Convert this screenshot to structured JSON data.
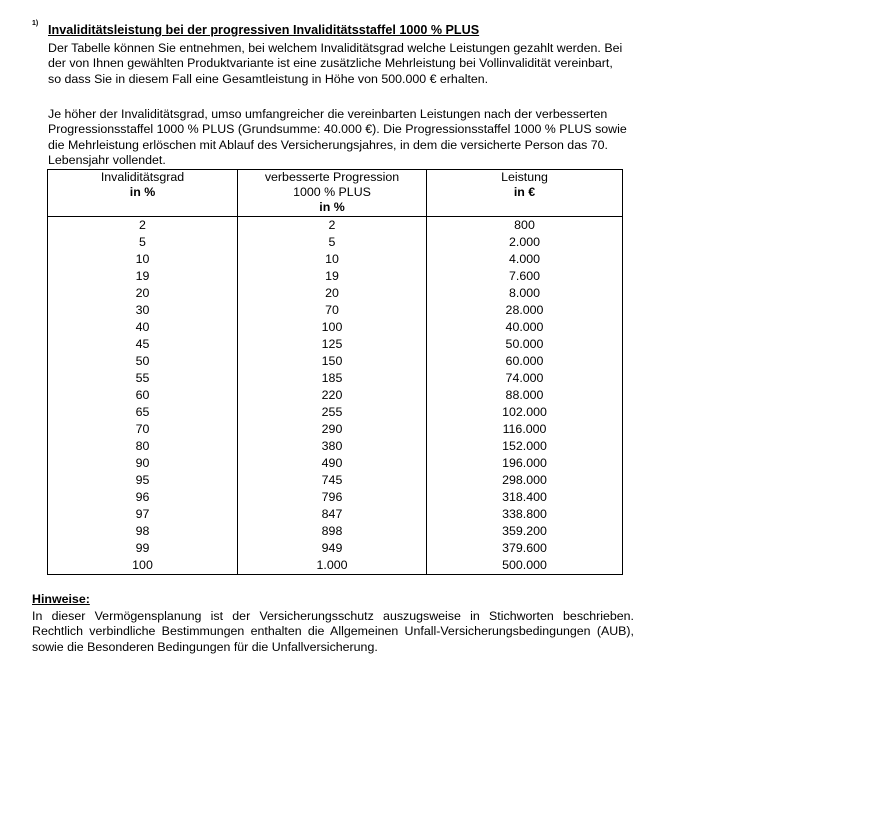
{
  "footnote_marker": "1)",
  "title": "Invaliditätsleistung bei der progressiven Invaliditätsstaffel 1000 % PLUS",
  "paragraph1": "Der Tabelle können Sie entnehmen, bei welchem Invaliditätsgrad welche Leistungen gezahlt werden. Bei der von Ihnen gewählten Produktvariante ist eine zusätzliche Mehrleistung bei Vollinvalidität vereinbart, so dass Sie in diesem Fall eine Gesamtleistung in Höhe von 500.000 € erhalten.",
  "paragraph2": "Je höher der Invaliditätsgrad, umso umfangreicher die vereinbarten Leistungen nach der verbesserten Progressionsstaffel 1000 % PLUS (Grundsumme: 40.000 €). Die Progressionsstaffel 1000 % PLUS sowie die Mehrleistung erlöschen mit Ablauf des Versicherungsjahres, in dem die versicherte Person das 70. Lebensjahr vollendet.",
  "table": {
    "headers": [
      {
        "line1": "Invaliditätsgrad",
        "line2": "",
        "unit": "in %"
      },
      {
        "line1": "verbesserte Progression",
        "line2": "1000 % PLUS",
        "unit": "in %"
      },
      {
        "line1": "Leistung",
        "line2": "",
        "unit": "in €"
      }
    ],
    "rows": [
      [
        "2",
        "2",
        "800"
      ],
      [
        "5",
        "5",
        "2.000"
      ],
      [
        "10",
        "10",
        "4.000"
      ],
      [
        "19",
        "19",
        "7.600"
      ],
      [
        "20",
        "20",
        "8.000"
      ],
      [
        "30",
        "70",
        "28.000"
      ],
      [
        "40",
        "100",
        "40.000"
      ],
      [
        "45",
        "125",
        "50.000"
      ],
      [
        "50",
        "150",
        "60.000"
      ],
      [
        "55",
        "185",
        "74.000"
      ],
      [
        "60",
        "220",
        "88.000"
      ],
      [
        "65",
        "255",
        "102.000"
      ],
      [
        "70",
        "290",
        "116.000"
      ],
      [
        "80",
        "380",
        "152.000"
      ],
      [
        "90",
        "490",
        "196.000"
      ],
      [
        "95",
        "745",
        "298.000"
      ],
      [
        "96",
        "796",
        "318.400"
      ],
      [
        "97",
        "847",
        "338.800"
      ],
      [
        "98",
        "898",
        "359.200"
      ],
      [
        "99",
        "949",
        "379.600"
      ],
      [
        "100",
        "1.000",
        "500.000"
      ]
    ]
  },
  "notes_heading": "Hinweise:",
  "notes_text": "In dieser Vermögensplanung ist der Versicherungsschutz auszugsweise in Stichworten beschrieben. Rechtlich verbindliche Bestimmungen enthalten die Allgemeinen Unfall-Versicherungsbedingungen (AUB), sowie die Besonderen Bedingungen für die Unfallversicherung."
}
